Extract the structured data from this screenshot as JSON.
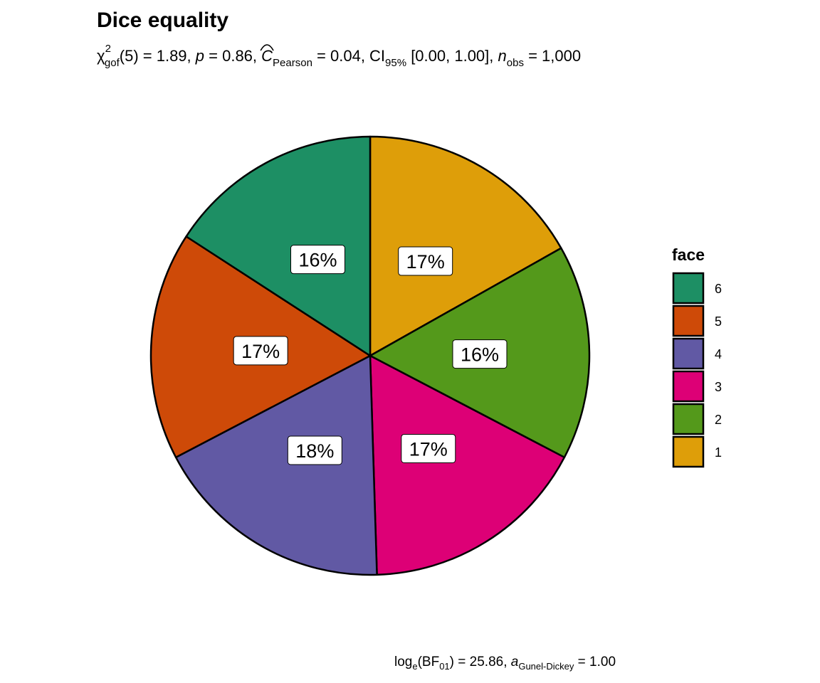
{
  "chart_data": {
    "type": "pie",
    "title": "Dice equality",
    "subtitle": {
      "chi": "χ",
      "chi_sup": "2",
      "chi_sub": "gof",
      "seg1": "(5) = 1.89, ",
      "p": "p",
      "seg2": " = 0.86, ",
      "c": "C",
      "c_sub": "Pearson",
      "seg3": " = 0.04, CI",
      "ci_sub": "95%",
      "seg4": " [0.00, 1.00], ",
      "n": "n",
      "n_sub": "obs",
      "seg5": " = 1,000"
    },
    "caption": {
      "log": "log",
      "log_sub": "e",
      "bf_open": "(BF",
      "bf_sub": "01",
      "seg1": ") = 25.86, ",
      "a": "a",
      "a_sub": "Gunel-Dickey",
      "seg2": " = 1.00"
    },
    "slices": [
      {
        "face": "1",
        "percent": 17,
        "label": "17%",
        "color": "#DE9E09"
      },
      {
        "face": "2",
        "percent": 16,
        "label": "16%",
        "color": "#54991B"
      },
      {
        "face": "3",
        "percent": 17,
        "label": "17%",
        "color": "#DD0076"
      },
      {
        "face": "4",
        "percent": 18,
        "label": "18%",
        "color": "#6159A4"
      },
      {
        "face": "5",
        "percent": 17,
        "label": "17%",
        "color": "#CE4A08"
      },
      {
        "face": "6",
        "percent": 16,
        "label": "16%",
        "color": "#1D8F64"
      }
    ],
    "legend": {
      "title": "face",
      "position": "right",
      "order": [
        "6",
        "5",
        "4",
        "3",
        "2",
        "1"
      ]
    }
  }
}
